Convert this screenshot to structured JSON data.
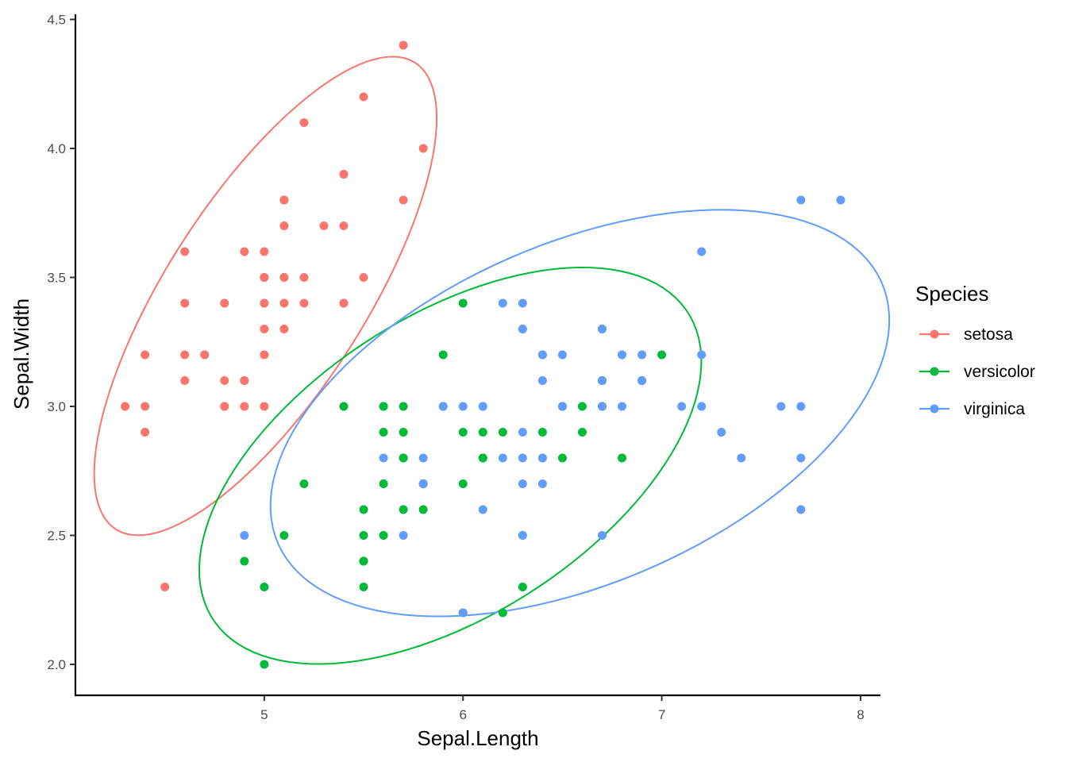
{
  "chart_data": {
    "type": "scatter",
    "title": "",
    "xlabel": "Sepal.Length",
    "ylabel": "Sepal.Width",
    "xlim": [
      4.05,
      8.1
    ],
    "ylim": [
      1.88,
      4.52
    ],
    "x_ticks": [
      5,
      6,
      7,
      8
    ],
    "x_tick_labels": [
      "5",
      "6",
      "7",
      "8"
    ],
    "y_ticks": [
      2.0,
      2.5,
      3.0,
      3.5,
      4.0,
      4.5
    ],
    "y_tick_labels": [
      "2.0",
      "2.5",
      "3.0",
      "3.5",
      "4.0",
      "4.5"
    ],
    "grid": false,
    "legend": {
      "title": "Species",
      "position": "right"
    },
    "series": [
      {
        "name": "setosa",
        "color": "#F8766D",
        "points": [
          [
            5.1,
            3.5
          ],
          [
            4.9,
            3.0
          ],
          [
            4.7,
            3.2
          ],
          [
            4.6,
            3.1
          ],
          [
            5.0,
            3.6
          ],
          [
            5.4,
            3.9
          ],
          [
            4.6,
            3.4
          ],
          [
            5.0,
            3.4
          ],
          [
            4.4,
            2.9
          ],
          [
            4.9,
            3.1
          ],
          [
            5.4,
            3.7
          ],
          [
            4.8,
            3.4
          ],
          [
            4.8,
            3.0
          ],
          [
            4.3,
            3.0
          ],
          [
            5.8,
            4.0
          ],
          [
            5.7,
            4.4
          ],
          [
            5.4,
            3.9
          ],
          [
            5.1,
            3.5
          ],
          [
            5.7,
            3.8
          ],
          [
            5.1,
            3.8
          ],
          [
            5.4,
            3.4
          ],
          [
            5.1,
            3.7
          ],
          [
            4.6,
            3.6
          ],
          [
            5.1,
            3.3
          ],
          [
            4.8,
            3.4
          ],
          [
            5.0,
            3.0
          ],
          [
            5.0,
            3.4
          ],
          [
            5.2,
            3.5
          ],
          [
            5.2,
            3.4
          ],
          [
            4.7,
            3.2
          ],
          [
            4.8,
            3.1
          ],
          [
            5.4,
            3.4
          ],
          [
            5.2,
            4.1
          ],
          [
            5.5,
            4.2
          ],
          [
            4.9,
            3.1
          ],
          [
            5.0,
            3.2
          ],
          [
            5.5,
            3.5
          ],
          [
            4.9,
            3.6
          ],
          [
            4.4,
            3.0
          ],
          [
            5.1,
            3.4
          ],
          [
            5.0,
            3.5
          ],
          [
            4.5,
            2.3
          ],
          [
            4.4,
            3.2
          ],
          [
            5.0,
            3.5
          ],
          [
            5.1,
            3.8
          ],
          [
            4.8,
            3.0
          ],
          [
            5.1,
            3.8
          ],
          [
            4.6,
            3.2
          ],
          [
            5.3,
            3.7
          ],
          [
            5.0,
            3.3
          ]
        ],
        "ellipse": {
          "center": [
            5.006,
            3.428
          ],
          "sd": [
            0.352,
            0.379
          ],
          "r": 0.743,
          "level": 0.95
        }
      },
      {
        "name": "versicolor",
        "color": "#00BA38",
        "points": [
          [
            7.0,
            3.2
          ],
          [
            6.4,
            3.2
          ],
          [
            6.9,
            3.1
          ],
          [
            5.5,
            2.3
          ],
          [
            6.5,
            2.8
          ],
          [
            5.7,
            2.8
          ],
          [
            6.3,
            3.3
          ],
          [
            4.9,
            2.4
          ],
          [
            6.6,
            2.9
          ],
          [
            5.2,
            2.7
          ],
          [
            5.0,
            2.0
          ],
          [
            5.9,
            3.0
          ],
          [
            6.0,
            2.2
          ],
          [
            6.1,
            2.9
          ],
          [
            5.6,
            2.9
          ],
          [
            6.7,
            3.1
          ],
          [
            5.6,
            3.0
          ],
          [
            5.8,
            2.7
          ],
          [
            6.2,
            2.2
          ],
          [
            5.6,
            2.5
          ],
          [
            5.9,
            3.2
          ],
          [
            6.1,
            2.8
          ],
          [
            6.3,
            2.5
          ],
          [
            6.1,
            2.8
          ],
          [
            6.4,
            2.9
          ],
          [
            6.6,
            3.0
          ],
          [
            6.8,
            2.8
          ],
          [
            6.7,
            3.0
          ],
          [
            6.0,
            2.9
          ],
          [
            5.7,
            2.6
          ],
          [
            5.5,
            2.4
          ],
          [
            5.5,
            2.4
          ],
          [
            5.8,
            2.7
          ],
          [
            6.0,
            2.7
          ],
          [
            5.4,
            3.0
          ],
          [
            6.0,
            3.4
          ],
          [
            6.7,
            3.1
          ],
          [
            6.3,
            2.3
          ],
          [
            5.6,
            3.0
          ],
          [
            5.5,
            2.5
          ],
          [
            5.5,
            2.6
          ],
          [
            6.1,
            3.0
          ],
          [
            5.8,
            2.6
          ],
          [
            5.0,
            2.3
          ],
          [
            5.6,
            2.7
          ],
          [
            5.7,
            3.0
          ],
          [
            5.7,
            2.9
          ],
          [
            6.2,
            2.9
          ],
          [
            5.1,
            2.5
          ],
          [
            5.7,
            2.8
          ]
        ],
        "ellipse": {
          "center": [
            5.936,
            2.77
          ],
          "sd": [
            0.516,
            0.314
          ],
          "r": 0.526,
          "level": 0.95
        }
      },
      {
        "name": "virginica",
        "color": "#619CFF",
        "points": [
          [
            6.3,
            3.3
          ],
          [
            5.8,
            2.7
          ],
          [
            7.1,
            3.0
          ],
          [
            6.3,
            2.9
          ],
          [
            6.5,
            3.0
          ],
          [
            7.6,
            3.0
          ],
          [
            4.9,
            2.5
          ],
          [
            7.3,
            2.9
          ],
          [
            6.7,
            2.5
          ],
          [
            7.2,
            3.6
          ],
          [
            6.5,
            3.2
          ],
          [
            6.4,
            2.7
          ],
          [
            6.8,
            3.0
          ],
          [
            5.7,
            2.5
          ],
          [
            5.8,
            2.8
          ],
          [
            6.4,
            3.2
          ],
          [
            6.5,
            3.0
          ],
          [
            7.7,
            3.8
          ],
          [
            7.7,
            2.6
          ],
          [
            6.0,
            2.2
          ],
          [
            6.9,
            3.2
          ],
          [
            5.6,
            2.8
          ],
          [
            7.7,
            2.8
          ],
          [
            6.3,
            2.7
          ],
          [
            6.7,
            3.3
          ],
          [
            7.2,
            3.2
          ],
          [
            6.2,
            2.8
          ],
          [
            6.1,
            3.0
          ],
          [
            6.4,
            2.8
          ],
          [
            7.2,
            3.0
          ],
          [
            7.4,
            2.8
          ],
          [
            7.9,
            3.8
          ],
          [
            6.4,
            2.8
          ],
          [
            6.3,
            2.8
          ],
          [
            6.1,
            2.6
          ],
          [
            7.7,
            3.0
          ],
          [
            6.3,
            3.4
          ],
          [
            6.4,
            3.1
          ],
          [
            6.0,
            3.0
          ],
          [
            6.9,
            3.1
          ],
          [
            6.7,
            3.1
          ],
          [
            6.9,
            3.1
          ],
          [
            5.8,
            2.7
          ],
          [
            6.8,
            3.2
          ],
          [
            6.7,
            3.3
          ],
          [
            6.7,
            3.0
          ],
          [
            6.3,
            2.5
          ],
          [
            6.5,
            3.0
          ],
          [
            6.2,
            3.4
          ],
          [
            5.9,
            3.0
          ]
        ],
        "ellipse": {
          "center": [
            6.588,
            2.974
          ],
          "sd": [
            0.636,
            0.322
          ],
          "r": 0.457,
          "level": 0.95
        }
      }
    ]
  }
}
